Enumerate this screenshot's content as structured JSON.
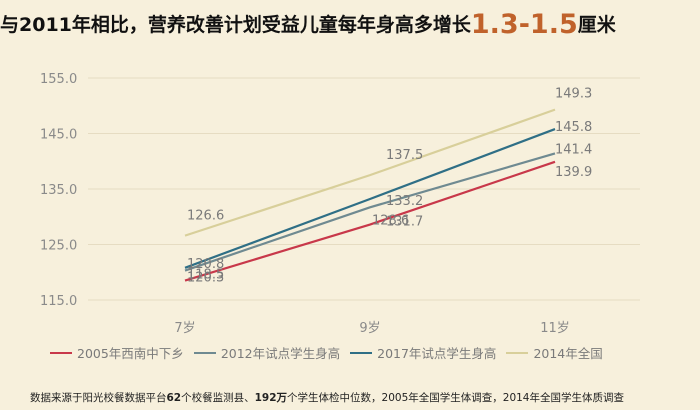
{
  "title": {
    "text": "与2011年相比，营养改善计划受益儿童每年身高多增长",
    "highlight": "1.3-1.5",
    "suffix": "厘米"
  },
  "footnote": {
    "p1": "数据来源于阳光校餐数据平台",
    "n1": "62",
    "p2": "个校餐监测县、",
    "n2": "192万",
    "p3": "个学生体检中位数，2005年全国学生体调查，2014年全国学生体质调查"
  },
  "chart_data": {
    "type": "line",
    "categories": [
      "7岁",
      "9岁",
      "11岁"
    ],
    "ylim": [
      115,
      155
    ],
    "yticks": [
      "115.0",
      "125.0",
      "135.0",
      "145.0",
      "155.0"
    ],
    "grid": true,
    "legend_position": "bottom",
    "series": [
      {
        "name": "2005年西南中下乡",
        "color": "#c8384a",
        "values": [
          118.5,
          128.6,
          139.9
        ],
        "labels": [
          "118.5",
          "128.6",
          "139.9"
        ]
      },
      {
        "name": "2012年试点学生身高",
        "color": "#6f8a91",
        "values": [
          120.3,
          131.7,
          141.4
        ],
        "labels": [
          "120.3",
          "131.7",
          "141.4"
        ]
      },
      {
        "name": "2017年试点学生身高",
        "color": "#2f6f86",
        "values": [
          120.8,
          133.2,
          145.8
        ],
        "labels": [
          "120.8",
          "133.2",
          "145.8"
        ]
      },
      {
        "name": "2014年全国",
        "color": "#d8cf9a",
        "values": [
          126.6,
          137.5,
          149.3
        ],
        "labels": [
          "126.6",
          "137.5",
          "149.3"
        ]
      }
    ]
  }
}
